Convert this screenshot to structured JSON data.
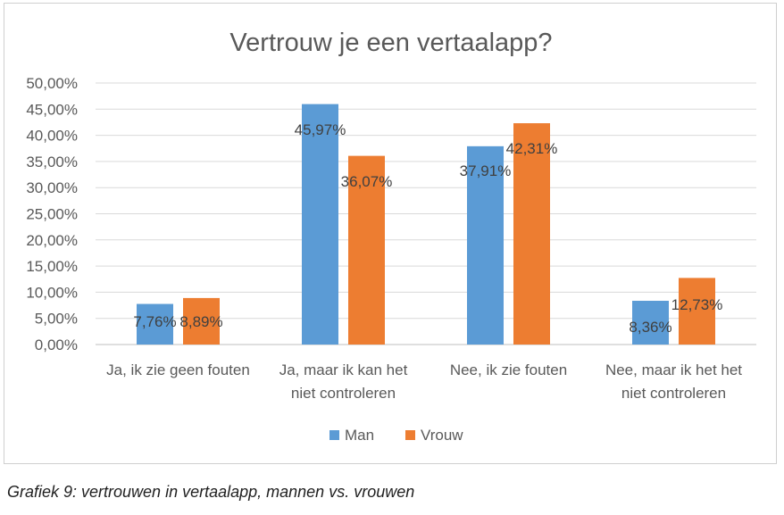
{
  "chart_data": {
    "type": "bar",
    "title": "Vertrouw je een vertaalapp?",
    "categories": [
      [
        "Ja, ik zie geen fouten"
      ],
      [
        "Ja, maar ik kan het",
        "niet controleren"
      ],
      [
        "Nee, ik zie fouten"
      ],
      [
        "Nee, maar ik het het",
        "niet controleren"
      ]
    ],
    "series": [
      {
        "name": "Man",
        "color": "#5b9bd5",
        "values": [
          7.76,
          45.97,
          37.91,
          8.36
        ],
        "labels": [
          "7,76%",
          "45,97%",
          "37,91%",
          "8,36%"
        ]
      },
      {
        "name": "Vrouw",
        "color": "#ed7d31",
        "values": [
          8.89,
          36.07,
          42.31,
          12.73
        ],
        "labels": [
          "8,89%",
          "36,07%",
          "42,31%",
          "12,73%"
        ]
      }
    ],
    "ylim": [
      0,
      50
    ],
    "yticks": [
      0,
      5,
      10,
      15,
      20,
      25,
      30,
      35,
      40,
      45,
      50
    ],
    "ytick_labels": [
      "0,00%",
      "5,00%",
      "10,00%",
      "15,00%",
      "20,00%",
      "25,00%",
      "30,00%",
      "35,00%",
      "40,00%",
      "45,00%",
      "50,00%"
    ],
    "xlabel": "",
    "ylabel": "",
    "grid": true,
    "legend": "bottom"
  },
  "caption": "Grafiek 9: vertrouwen in vertaalapp, mannen vs. vrouwen"
}
